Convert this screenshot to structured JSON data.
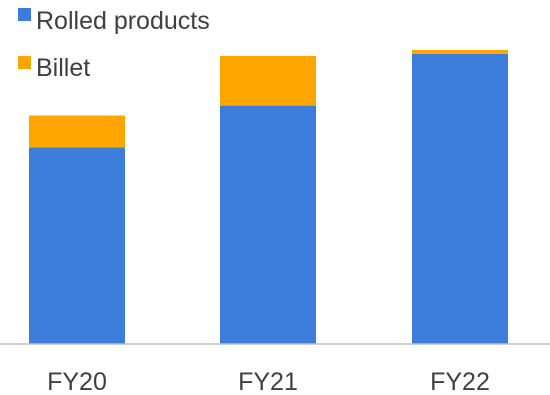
{
  "chart_data": {
    "type": "bar",
    "stacked": true,
    "categories": [
      "FY20",
      "FY21",
      "FY22"
    ],
    "series": [
      {
        "name": "Rolled products",
        "values": [
          198,
          240,
          292
        ],
        "color": "#3c7ddb"
      },
      {
        "name": "Billet",
        "values": [
          32,
          50,
          4
        ],
        "color": "#ffa500"
      }
    ],
    "title": "",
    "xlabel": "",
    "ylabel": "",
    "ylim": [
      0,
      300
    ],
    "grid": false,
    "legend": "top-left",
    "axis_line_color": "#bfbfbf"
  }
}
